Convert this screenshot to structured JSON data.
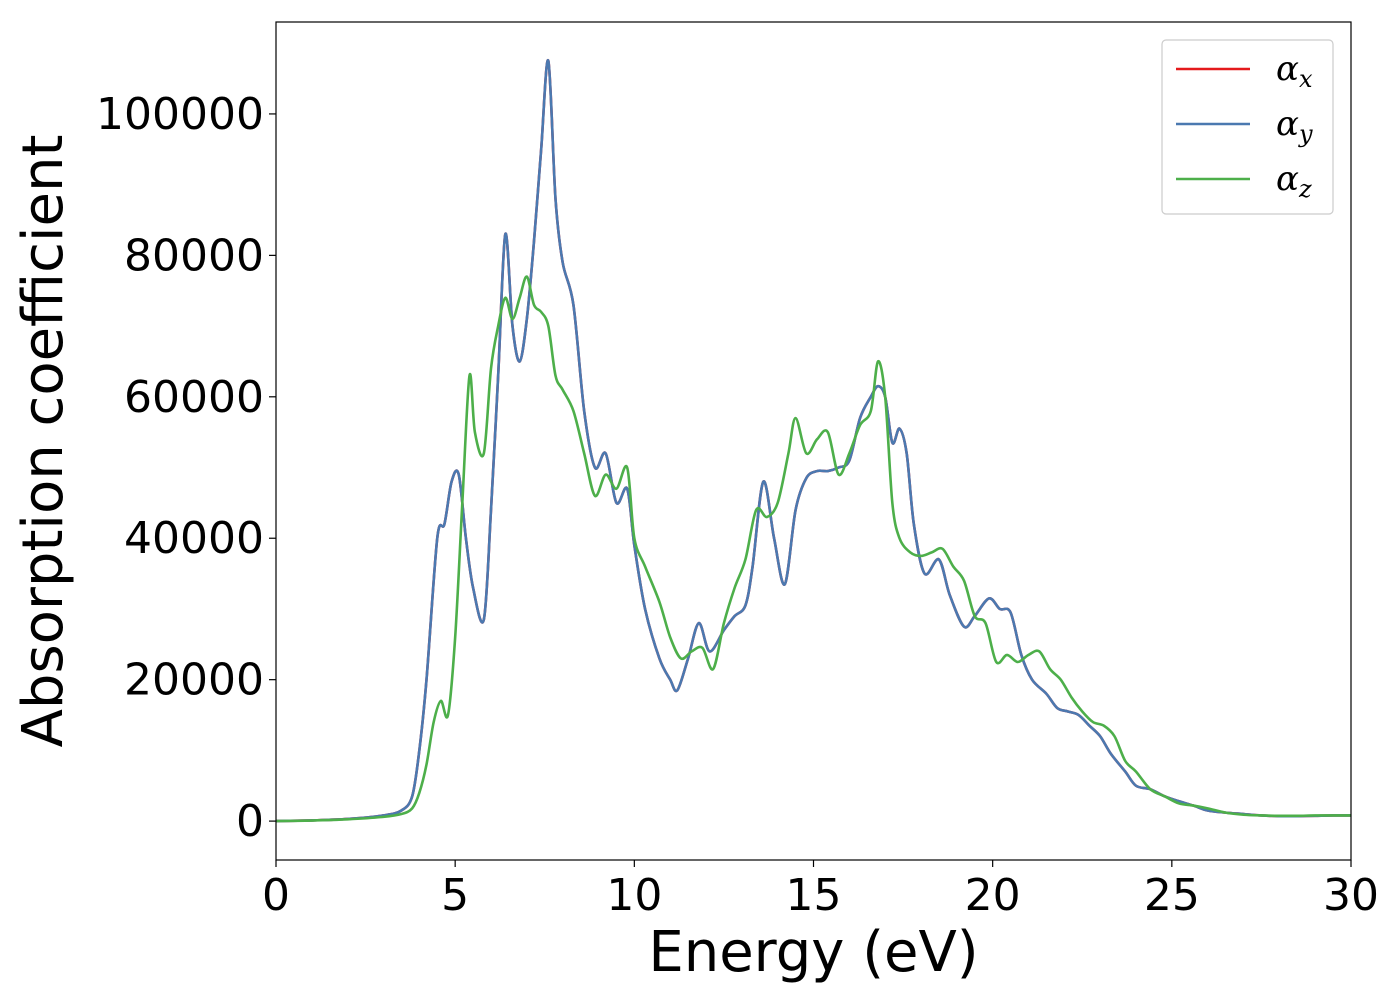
{
  "chart_data": {
    "type": "line",
    "title": "",
    "xlabel": "Energy (eV)",
    "ylabel": "Absorption coefficient",
    "xlim": [
      0,
      30
    ],
    "ylim": [
      -5500,
      113000
    ],
    "xticks": [
      0,
      5,
      10,
      15,
      20,
      25,
      30
    ],
    "xtick_labels": [
      "0",
      "5",
      "10",
      "15",
      "20",
      "25",
      "30"
    ],
    "yticks": [
      0,
      20000,
      40000,
      60000,
      80000,
      100000
    ],
    "ytick_labels": [
      "0",
      "20000",
      "40000",
      "60000",
      "80000",
      "100000"
    ],
    "grid": false,
    "legend_position": "top-right",
    "series": [
      {
        "name": "αx",
        "color": "#e41a1c",
        "x": [
          0,
          1,
          2,
          3,
          3.5,
          3.8,
          4.0,
          4.2,
          4.5,
          4.7,
          4.9,
          5.1,
          5.3,
          5.5,
          5.8,
          6.0,
          6.2,
          6.4,
          6.6,
          6.8,
          7.0,
          7.2,
          7.4,
          7.6,
          7.8,
          8.0,
          8.3,
          8.6,
          8.9,
          9.2,
          9.5,
          9.8,
          10.0,
          10.3,
          10.7,
          11.0,
          11.2,
          11.5,
          11.8,
          12.1,
          12.5,
          12.8,
          13.1,
          13.3,
          13.6,
          13.9,
          14.2,
          14.5,
          14.8,
          15.1,
          15.4,
          15.7,
          16.0,
          16.3,
          16.6,
          16.8,
          17.0,
          17.2,
          17.4,
          17.6,
          17.8,
          18.1,
          18.5,
          18.8,
          19.2,
          19.5,
          19.9,
          20.2,
          20.5,
          20.8,
          21.1,
          21.5,
          21.8,
          22.1,
          22.4,
          22.7,
          23.0,
          23.3,
          23.7,
          24.0,
          24.4,
          24.8,
          25.2,
          25.6,
          26.0,
          26.5,
          27.0,
          27.5,
          28.0,
          28.5,
          29.0,
          29.5,
          30.0
        ],
        "y": [
          0,
          100,
          300,
          800,
          1500,
          3500,
          10000,
          20000,
          40000,
          42000,
          48000,
          49000,
          40000,
          33000,
          28500,
          44000,
          63000,
          83000,
          70000,
          65000,
          71000,
          82000,
          95000,
          107500,
          88000,
          79000,
          73000,
          58000,
          50000,
          52000,
          45000,
          47000,
          39000,
          30000,
          23000,
          20000,
          18500,
          23000,
          28000,
          24000,
          27000,
          29000,
          30500,
          36000,
          48000,
          40000,
          33500,
          44000,
          48500,
          49500,
          49500,
          50000,
          51000,
          57000,
          60000,
          61500,
          60000,
          53500,
          55500,
          52000,
          42000,
          35000,
          37000,
          32000,
          27500,
          29000,
          31500,
          30000,
          29500,
          23500,
          20000,
          18000,
          16000,
          15500,
          15000,
          13500,
          12000,
          9500,
          7000,
          5000,
          4500,
          3500,
          2800,
          2200,
          1500,
          1200,
          1000,
          800,
          700,
          700,
          750,
          800,
          800
        ]
      },
      {
        "name": "αy",
        "color": "#4b79b0",
        "x": [
          0,
          1,
          2,
          3,
          3.5,
          3.8,
          4.0,
          4.2,
          4.5,
          4.7,
          4.9,
          5.1,
          5.3,
          5.5,
          5.8,
          6.0,
          6.2,
          6.4,
          6.6,
          6.8,
          7.0,
          7.2,
          7.4,
          7.6,
          7.8,
          8.0,
          8.3,
          8.6,
          8.9,
          9.2,
          9.5,
          9.8,
          10.0,
          10.3,
          10.7,
          11.0,
          11.2,
          11.5,
          11.8,
          12.1,
          12.5,
          12.8,
          13.1,
          13.3,
          13.6,
          13.9,
          14.2,
          14.5,
          14.8,
          15.1,
          15.4,
          15.7,
          16.0,
          16.3,
          16.6,
          16.8,
          17.0,
          17.2,
          17.4,
          17.6,
          17.8,
          18.1,
          18.5,
          18.8,
          19.2,
          19.5,
          19.9,
          20.2,
          20.5,
          20.8,
          21.1,
          21.5,
          21.8,
          22.1,
          22.4,
          22.7,
          23.0,
          23.3,
          23.7,
          24.0,
          24.4,
          24.8,
          25.2,
          25.6,
          26.0,
          26.5,
          27.0,
          27.5,
          28.0,
          28.5,
          29.0,
          29.5,
          30.0
        ],
        "y": [
          0,
          100,
          300,
          800,
          1500,
          3500,
          10000,
          20000,
          40000,
          42000,
          48000,
          49000,
          40000,
          33000,
          28500,
          44000,
          63000,
          83000,
          70000,
          65000,
          71000,
          82000,
          95000,
          107500,
          88000,
          79000,
          73000,
          58000,
          50000,
          52000,
          45000,
          47000,
          39000,
          30000,
          23000,
          20000,
          18500,
          23000,
          28000,
          24000,
          27000,
          29000,
          30500,
          36000,
          48000,
          40000,
          33500,
          44000,
          48500,
          49500,
          49500,
          50000,
          51000,
          57000,
          60000,
          61500,
          60000,
          53500,
          55500,
          52000,
          42000,
          35000,
          37000,
          32000,
          27500,
          29000,
          31500,
          30000,
          29500,
          23500,
          20000,
          18000,
          16000,
          15500,
          15000,
          13500,
          12000,
          9500,
          7000,
          5000,
          4500,
          3500,
          2800,
          2200,
          1500,
          1200,
          1000,
          800,
          700,
          700,
          750,
          800,
          800
        ]
      },
      {
        "name": "αz",
        "color": "#4daf4a",
        "x": [
          0,
          1,
          2,
          3,
          3.5,
          3.8,
          4.0,
          4.2,
          4.4,
          4.6,
          4.8,
          5.0,
          5.2,
          5.4,
          5.55,
          5.8,
          6.0,
          6.2,
          6.4,
          6.6,
          6.8,
          7.0,
          7.2,
          7.4,
          7.6,
          7.8,
          8.0,
          8.3,
          8.6,
          8.9,
          9.2,
          9.5,
          9.8,
          10.0,
          10.3,
          10.7,
          11.0,
          11.3,
          11.6,
          11.9,
          12.2,
          12.5,
          12.8,
          13.1,
          13.4,
          13.7,
          14.0,
          14.3,
          14.5,
          14.8,
          15.1,
          15.4,
          15.7,
          16.0,
          16.3,
          16.6,
          16.8,
          17.0,
          17.2,
          17.4,
          17.7,
          18.0,
          18.3,
          18.6,
          18.9,
          19.2,
          19.5,
          19.8,
          20.1,
          20.4,
          20.7,
          21.0,
          21.3,
          21.6,
          21.9,
          22.2,
          22.5,
          22.8,
          23.1,
          23.4,
          23.7,
          24.0,
          24.4,
          24.8,
          25.2,
          25.6,
          26.0,
          26.5,
          27.0,
          27.5,
          28.0,
          28.5,
          29.0,
          29.5,
          30.0
        ],
        "y": [
          0,
          80,
          250,
          600,
          1000,
          1800,
          4000,
          8000,
          14000,
          17000,
          15000,
          26000,
          45000,
          63000,
          55000,
          52000,
          64000,
          70000,
          74000,
          71000,
          74000,
          77000,
          73000,
          72000,
          70000,
          63000,
          61000,
          58000,
          52000,
          46000,
          49000,
          47000,
          50000,
          40000,
          36000,
          31000,
          26000,
          23000,
          24000,
          24500,
          21500,
          28000,
          33000,
          37000,
          44000,
          43000,
          45000,
          52000,
          57000,
          52000,
          54000,
          55000,
          49000,
          52000,
          56000,
          58000,
          65000,
          60000,
          45000,
          40000,
          38000,
          37500,
          38000,
          38500,
          36000,
          34000,
          29000,
          28000,
          22500,
          23500,
          22500,
          23500,
          24000,
          21500,
          20000,
          17500,
          15500,
          14000,
          13500,
          12000,
          8500,
          7000,
          4500,
          3500,
          2500,
          2200,
          1800,
          1200,
          900,
          800,
          750,
          750,
          800,
          800,
          800
        ]
      }
    ]
  }
}
